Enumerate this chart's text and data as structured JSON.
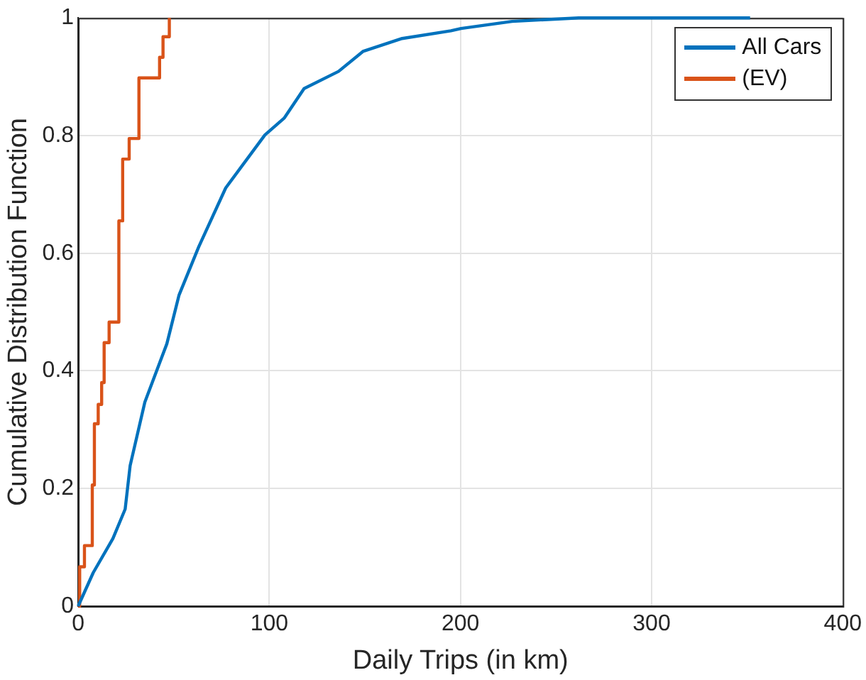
{
  "chart_data": {
    "type": "line",
    "xlabel": "Daily Trips (in km)",
    "ylabel": "Cumulative Distribution Function",
    "xlim": [
      0,
      400
    ],
    "xticks": [
      0,
      100,
      200,
      300,
      400
    ],
    "ylim": [
      0,
      1
    ],
    "yticks": [
      0,
      0.2,
      0.4,
      0.6,
      0.8,
      1
    ],
    "grid": true,
    "legend": "top right",
    "marker": "none",
    "line_style": "solid",
    "series": [
      {
        "name": "All Cars",
        "color": "#0072bd",
        "x": [
          0,
          7.9,
          18.2,
          24.6,
          27.2,
          34.9,
          46.4,
          52.8,
          63.1,
          77.2,
          97.7,
          107.9,
          118.2,
          136.2,
          149,
          169.5,
          195,
          200.3,
          227,
          261.8,
          351.5
        ],
        "values": [
          0,
          0.057,
          0.115,
          0.165,
          0.239,
          0.347,
          0.446,
          0.529,
          0.611,
          0.711,
          0.801,
          0.83,
          0.88,
          0.909,
          0.943,
          0.965,
          0.978,
          0.982,
          0.994,
          1,
          1
        ]
      },
      {
        "name": "(EV)",
        "color": "#d95319",
        "type": "step",
        "x": [
          0,
          0.8,
          3.3,
          7.4,
          8.5,
          10.5,
          12.3,
          13.6,
          16.2,
          21.3,
          23.3,
          26.7,
          31.8,
          42.6,
          44.4,
          47.7
        ],
        "values": [
          0,
          0.067,
          0.103,
          0.206,
          0.31,
          0.343,
          0.38,
          0.448,
          0.483,
          0.655,
          0.76,
          0.795,
          0.898,
          0.933,
          0.968,
          1
        ]
      }
    ]
  }
}
